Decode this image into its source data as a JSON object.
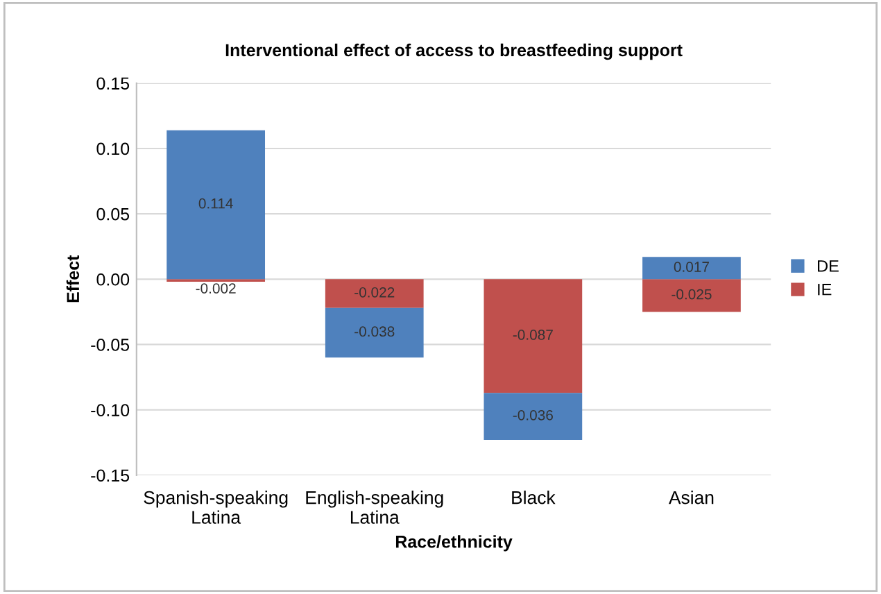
{
  "chart_data": {
    "type": "bar",
    "stacked": true,
    "title": "Interventional effect of access to breastfeeding support",
    "xlabel": "Race/ethnicity",
    "ylabel": "Effect",
    "categories": [
      "Spanish-speaking\nLatina",
      "English-speaking\nLatina",
      "Black",
      "Asian"
    ],
    "series": [
      {
        "name": "IE",
        "color": "#c0504d",
        "values": [
          -0.002,
          -0.022,
          -0.087,
          -0.025
        ]
      },
      {
        "name": "DE",
        "color": "#4f81bd",
        "values": [
          0.114,
          -0.038,
          -0.036,
          0.017
        ]
      }
    ],
    "ylim": [
      -0.15,
      0.15
    ],
    "yticks": [
      {
        "value": -0.15,
        "label": "-0.15"
      },
      {
        "value": -0.1,
        "label": "-0.10"
      },
      {
        "value": -0.05,
        "label": "-0.05"
      },
      {
        "value": 0,
        "label": "0.00"
      },
      {
        "value": 0.05,
        "label": "0.05"
      },
      {
        "value": 0.1,
        "label": "0.10"
      },
      {
        "value": 0.15,
        "label": "0.15"
      }
    ],
    "grid": "y",
    "legend": "right",
    "data_labels": true
  }
}
